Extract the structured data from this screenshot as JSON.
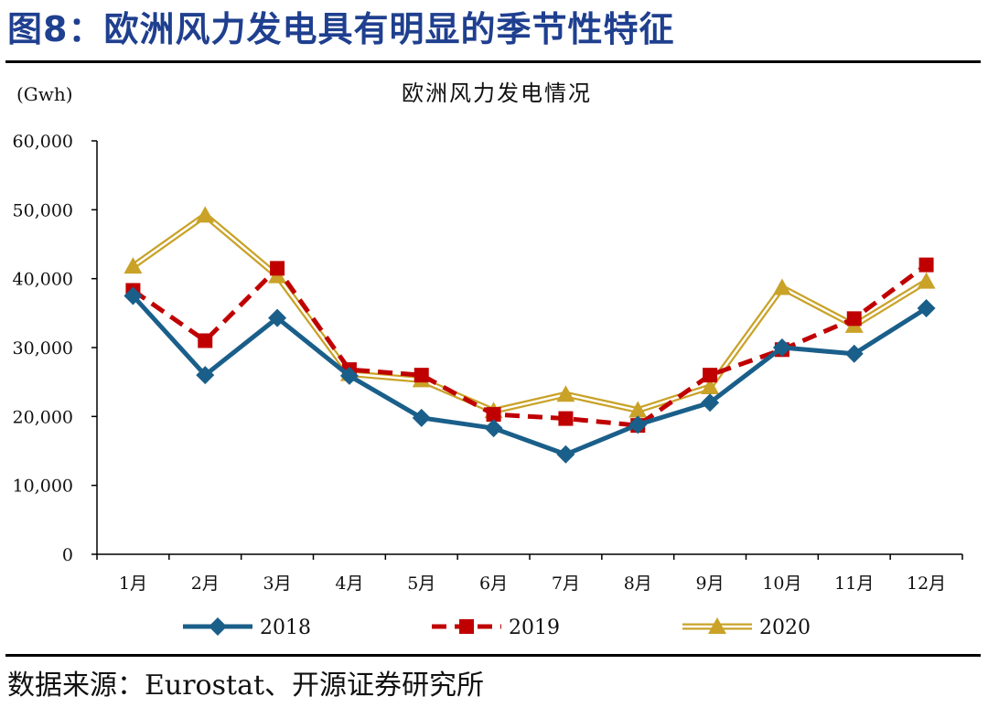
{
  "figure": {
    "title": "图8：欧洲风力发电具有明显的季节性特征",
    "source": "数据来源：Eurostat、开源证券研究所"
  },
  "colors": {
    "title": "#1f3f8f",
    "s2018": "#1a5f8a",
    "s2019": "#c00000",
    "s2020": "#c9a227"
  },
  "chart_data": {
    "type": "line",
    "title": "欧洲风力发电情况",
    "ylabel": "(Gwh)",
    "xlabel": "",
    "categories": [
      "1月",
      "2月",
      "3月",
      "4月",
      "5月",
      "6月",
      "7月",
      "8月",
      "9月",
      "10月",
      "11月",
      "12月"
    ],
    "ylim": [
      0,
      60000
    ],
    "yticks": [
      0,
      10000,
      20000,
      30000,
      40000,
      50000,
      60000
    ],
    "ytick_labels": [
      "0",
      "10,000",
      "20,000",
      "30,000",
      "40,000",
      "50,000",
      "60,000"
    ],
    "grid": false,
    "legend_position": "bottom",
    "series": [
      {
        "name": "2018",
        "style": "solid-diamond",
        "color": "#1a5f8a",
        "values": [
          37500,
          26000,
          34300,
          25900,
          19800,
          18300,
          14500,
          18800,
          22000,
          30000,
          29100,
          35700
        ]
      },
      {
        "name": "2019",
        "style": "dashed-square",
        "color": "#c00000",
        "values": [
          38300,
          31000,
          41500,
          26800,
          26000,
          20300,
          19700,
          18700,
          26000,
          29700,
          34200,
          42000
        ]
      },
      {
        "name": "2020",
        "style": "double-triangle",
        "color": "#c9a227",
        "values": [
          41800,
          49200,
          40400,
          26200,
          25300,
          20800,
          23200,
          20900,
          24300,
          38700,
          33200,
          39600
        ]
      }
    ]
  }
}
